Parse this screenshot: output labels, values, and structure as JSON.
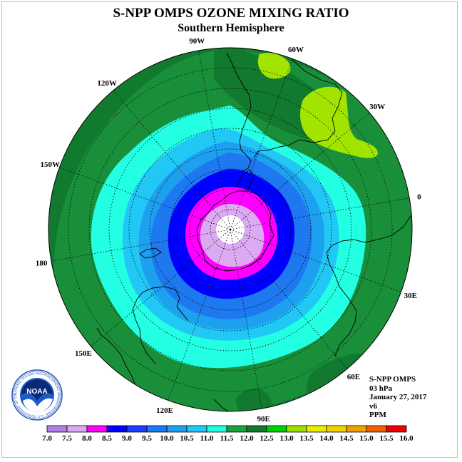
{
  "title": "S-NPP OMPS OZONE MIXING RATIO",
  "subtitle": "Southern Hemisphere",
  "longitude_labels": [
    {
      "text": "90W",
      "lon": -90
    },
    {
      "text": "60W",
      "lon": -60
    },
    {
      "text": "30W",
      "lon": -30
    },
    {
      "text": "0",
      "lon": 0
    },
    {
      "text": "30E",
      "lon": 30
    },
    {
      "text": "60E",
      "lon": 60
    },
    {
      "text": "90E",
      "lon": 90
    },
    {
      "text": "120E",
      "lon": 120
    },
    {
      "text": "150E",
      "lon": 150
    },
    {
      "text": "180",
      "lon": 180
    },
    {
      "text": "150W",
      "lon": -150
    },
    {
      "text": "120W",
      "lon": -120
    }
  ],
  "info": {
    "instrument": "S-NPP OMPS",
    "pressure": "03 hPa",
    "date": "January 27, 2017",
    "version": "v6",
    "units": "PPM"
  },
  "logo": {
    "text": "NOAA",
    "ring_text": "NATIONAL OCEANIC AND ATMOSPHERIC ADMINISTRATION · U.S. DEPARTMENT OF COMMERCE"
  },
  "colorbar": {
    "labels": [
      "7.0",
      "7.5",
      "8.0",
      "8.5",
      "9.0",
      "9.5",
      "10.0",
      "10.5",
      "11.0",
      "11.5",
      "12.0",
      "12.5",
      "13.0",
      "13.5",
      "14.0",
      "14.5",
      "15.0",
      "15.5",
      "16.0"
    ],
    "colors": [
      "#b07ee8",
      "#dcaaf2",
      "#ff00ff",
      "#0000ff",
      "#1e3cff",
      "#1e78f0",
      "#1ea0f0",
      "#22c8f5",
      "#20ffe0",
      "#1ea03c",
      "#117a2e",
      "#00d000",
      "#a0e000",
      "#e6f000",
      "#f5d000",
      "#f0a000",
      "#f06000",
      "#f00000",
      "#8b5a3c"
    ]
  },
  "colors": {
    "level_11_5": "#1a8f3a",
    "level_12_0": "#117a2e",
    "level_12_5": "#a2e400",
    "level_11_0": "#22ffe3",
    "level_10_5": "#22c8f5",
    "level_10_0": "#1ea0f0",
    "level_9_5": "#1e78f0",
    "level_9_0": "#0000ff",
    "level_8_5": "#ff00ff",
    "level_8_0": "#dcaaf2",
    "pole": "#ffffff"
  }
}
